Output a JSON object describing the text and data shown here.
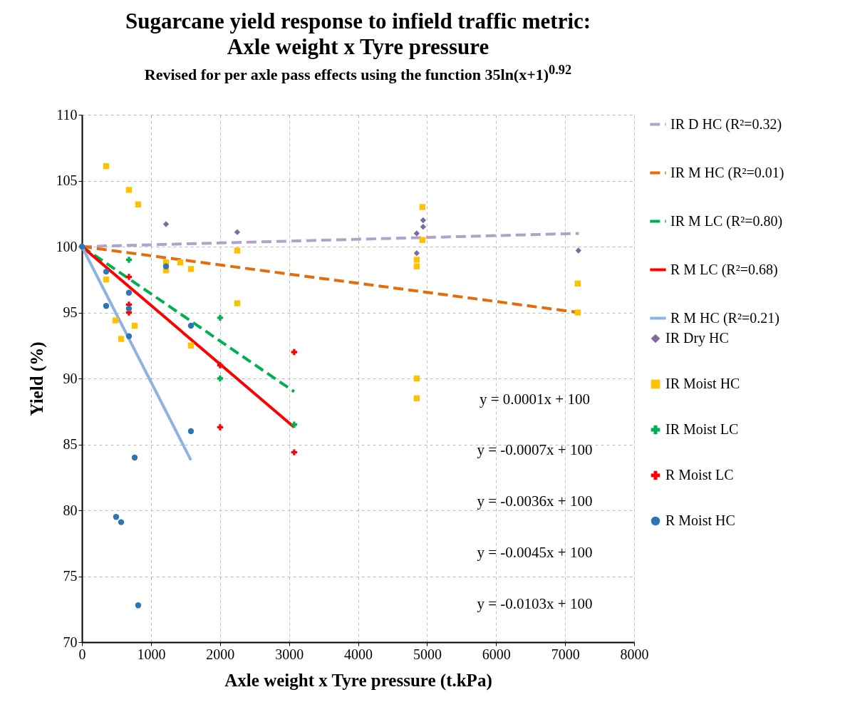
{
  "chart_data": {
    "type": "scatter",
    "title": "Sugarcane yield response to infield traffic metric: Axle weight x Tyre pressure",
    "subtitle": "Revised for per axle pass effects using the function 35ln(x+1)$^{0.92}$",
    "xlabel": "Axle weight x Tyre pressure (t.kPa)",
    "ylabel": "Yield (%)",
    "xlim": [
      0,
      8000
    ],
    "xticks": [
      0,
      1000,
      2000,
      3000,
      4000,
      5000,
      6000,
      7000,
      8000
    ],
    "ylim": [
      70,
      110
    ],
    "yticks": [
      70,
      75,
      80,
      85,
      90,
      95,
      100,
      105,
      110
    ],
    "grid": true,
    "legend": "right",
    "series": [
      {
        "name": "IR Dry HC",
        "marker": "diamond",
        "color": "#7e6a9c",
        "x": [
          1218,
          2250,
          4850,
          4943,
          4943,
          4850,
          7193
        ],
        "values": [
          101.7,
          101.1,
          101.0,
          102.0,
          101.5,
          99.5,
          99.7
        ]
      },
      {
        "name": "IR Moist HC",
        "marker": "square",
        "color": "#ffc000",
        "x": [
          351,
          681,
          815,
          1218,
          1218,
          1424,
          1579,
          2250,
          2250,
          351,
          485,
          764,
          568,
          1579,
          4933,
          4933,
          4850,
          4850,
          4850,
          4850,
          7183,
          7183
        ],
        "values": [
          106.1,
          104.3,
          103.2,
          98.8,
          98.2,
          98.8,
          98.3,
          99.7,
          95.7,
          97.5,
          94.4,
          94.0,
          93.0,
          92.5,
          103.0,
          100.5,
          99.0,
          98.5,
          90.0,
          88.5,
          97.2,
          95.0
        ]
      },
      {
        "name": "IR Moist LC",
        "marker": "cross",
        "color": "#00b050",
        "x": [
          681,
          2002,
          2002,
          3075
        ],
        "values": [
          99.0,
          94.6,
          90.0,
          86.5
        ]
      },
      {
        "name": "R Moist LC",
        "marker": "cross",
        "color": "#ff0000",
        "x": [
          681,
          681,
          681,
          2002,
          2002,
          3075,
          3075
        ],
        "values": [
          97.7,
          95.6,
          95.0,
          91.0,
          86.3,
          92.0,
          84.4
        ]
      },
      {
        "name": "R Moist HC",
        "marker": "circle",
        "color": "#2e75b6",
        "x": [
          0,
          351,
          1218,
          681,
          351,
          681,
          1579,
          681,
          1579,
          764,
          495,
          568,
          815
        ],
        "values": [
          100,
          98.1,
          98.5,
          96.5,
          95.5,
          95.3,
          94.0,
          93.2,
          86.0,
          84.0,
          79.5,
          79.1,
          72.8
        ]
      },
      {
        "name": "IR D HC (R²=0.32)",
        "type": "line",
        "line_style": "dashed",
        "color": "#b3a2c7",
        "x": [
          0,
          7200
        ],
        "values": [
          100,
          101.0
        ]
      },
      {
        "name": "IR M HC (R²=0.01)",
        "type": "line",
        "line_style": "dashed",
        "color": "#e46c0a",
        "x": [
          0,
          7200
        ],
        "values": [
          100,
          95.0
        ]
      },
      {
        "name": "IR M LC (R²=0.80)",
        "type": "line",
        "line_style": "dashed",
        "color": "#00b050",
        "x": [
          0,
          3075
        ],
        "values": [
          100,
          89.0
        ]
      },
      {
        "name": "R M LC (R²=0.68)",
        "type": "line",
        "line_style": "solid",
        "color": "#ff0000",
        "x": [
          0,
          3075
        ],
        "values": [
          100,
          86.3
        ]
      },
      {
        "name": "R M HC (R²=0.21)",
        "type": "line",
        "line_style": "solid",
        "color": "#8db3e2",
        "x": [
          0,
          1579
        ],
        "values": [
          100,
          83.8
        ]
      }
    ],
    "annotations": [
      "y = 0.0001x + 100",
      "y = -0.0007x + 100",
      "y = -0.0036x + 100",
      "y = -0.0045x + 100",
      "y = -0.0103x + 100"
    ]
  }
}
